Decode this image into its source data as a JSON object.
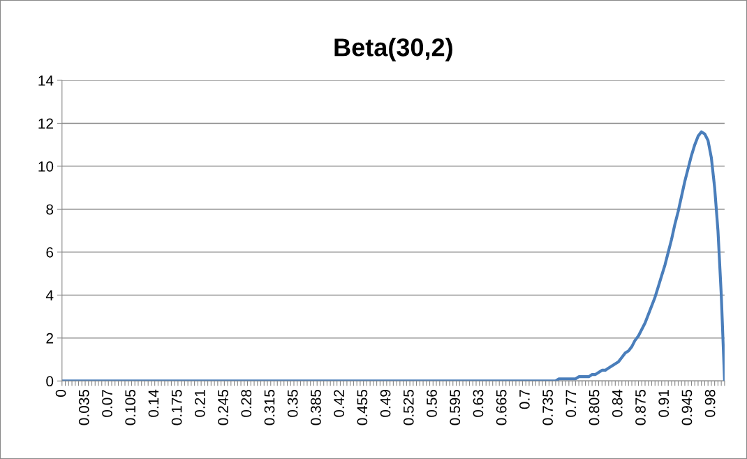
{
  "chart_data": {
    "type": "line",
    "title": "Beta(30,2)",
    "categories": [
      "0",
      null,
      null,
      null,
      null,
      null,
      null,
      "0.035",
      null,
      null,
      null,
      null,
      null,
      null,
      "0.07",
      null,
      null,
      null,
      null,
      null,
      null,
      "0.105",
      null,
      null,
      null,
      null,
      null,
      null,
      "0.14",
      null,
      null,
      null,
      null,
      null,
      null,
      "0.175",
      null,
      null,
      null,
      null,
      null,
      null,
      "0.21",
      null,
      null,
      null,
      null,
      null,
      null,
      "0.245",
      null,
      null,
      null,
      null,
      null,
      null,
      "0.28",
      null,
      null,
      null,
      null,
      null,
      null,
      "0.315",
      null,
      null,
      null,
      null,
      null,
      null,
      "0.35",
      null,
      null,
      null,
      null,
      null,
      null,
      "0.385",
      null,
      null,
      null,
      null,
      null,
      null,
      "0.42",
      null,
      null,
      null,
      null,
      null,
      null,
      "0.455",
      null,
      null,
      null,
      null,
      null,
      null,
      "0.49",
      null,
      null,
      null,
      null,
      null,
      null,
      "0.525",
      null,
      null,
      null,
      null,
      null,
      null,
      "0.56",
      null,
      null,
      null,
      null,
      null,
      null,
      "0.595",
      null,
      null,
      null,
      null,
      null,
      null,
      "0.63",
      null,
      null,
      null,
      null,
      null,
      null,
      "0.665",
      null,
      null,
      null,
      null,
      null,
      null,
      "0.7",
      null,
      null,
      null,
      null,
      null,
      null,
      "0.735",
      null,
      null,
      null,
      null,
      null,
      null,
      "0.77",
      null,
      null,
      null,
      null,
      null,
      null,
      "0.805",
      null,
      null,
      null,
      null,
      null,
      null,
      "0.84",
      null,
      null,
      null,
      null,
      null,
      null,
      "0.875",
      null,
      null,
      null,
      null,
      null,
      null,
      "0.91",
      null,
      null,
      null,
      null,
      null,
      null,
      "0.945",
      null,
      null,
      null,
      null,
      null,
      null,
      "0.98",
      null,
      null,
      null,
      null
    ],
    "series": [
      {
        "color": "#4a7ebb",
        "values": [
          0,
          0,
          0,
          0,
          0,
          0,
          0,
          0,
          0,
          0,
          0,
          0,
          0,
          0,
          0,
          0,
          0,
          0,
          0,
          0,
          0,
          0,
          0,
          0,
          0,
          0,
          0,
          0,
          0,
          0,
          0,
          0,
          0,
          0,
          0,
          0,
          0,
          0,
          0,
          0,
          0,
          0,
          0,
          0,
          0,
          0,
          0,
          0,
          0,
          0,
          0,
          0,
          0,
          0,
          0,
          0,
          0,
          0,
          0,
          0,
          0,
          0,
          0,
          0,
          0,
          0,
          0,
          0,
          0,
          0,
          0,
          0,
          0,
          0,
          0,
          0,
          0,
          0,
          0,
          0,
          0,
          0,
          0,
          0,
          0,
          0,
          0,
          0,
          0,
          0,
          0,
          0,
          0,
          0,
          0,
          0,
          0,
          0,
          0,
          0,
          0,
          0,
          0,
          0,
          0,
          0,
          0,
          0,
          0,
          0,
          0,
          0,
          0,
          0,
          0,
          0,
          0,
          0,
          0,
          0,
          0,
          0,
          0,
          0,
          0,
          0,
          0,
          0,
          0,
          0,
          0,
          0,
          0,
          0,
          0,
          0,
          0,
          0,
          0,
          0,
          0,
          0,
          0,
          0,
          0,
          0,
          0,
          0,
          0,
          0,
          0.1,
          0.1,
          0.1,
          0.1,
          0.1,
          0.1,
          0.2,
          0.2,
          0.2,
          0.2,
          0.3,
          0.3,
          0.4,
          0.5,
          0.5,
          0.6,
          0.7,
          0.8,
          0.9,
          1.1,
          1.3,
          1.4,
          1.6,
          1.9,
          2.1,
          2.4,
          2.7,
          3.1,
          3.5,
          3.9,
          4.4,
          4.9,
          5.4,
          6.0,
          6.6,
          7.3,
          7.9,
          8.6,
          9.3,
          9.9,
          10.5,
          11.0,
          11.4,
          11.6,
          11.5,
          11.2,
          10.4,
          9.0,
          7.0,
          4.0,
          0
        ]
      }
    ],
    "ylim": [
      0,
      14
    ],
    "yticks": [
      0,
      2,
      4,
      6,
      8,
      10,
      12,
      14
    ],
    "grid": "y",
    "marker": "none",
    "line_style": "solid",
    "legend": false
  }
}
